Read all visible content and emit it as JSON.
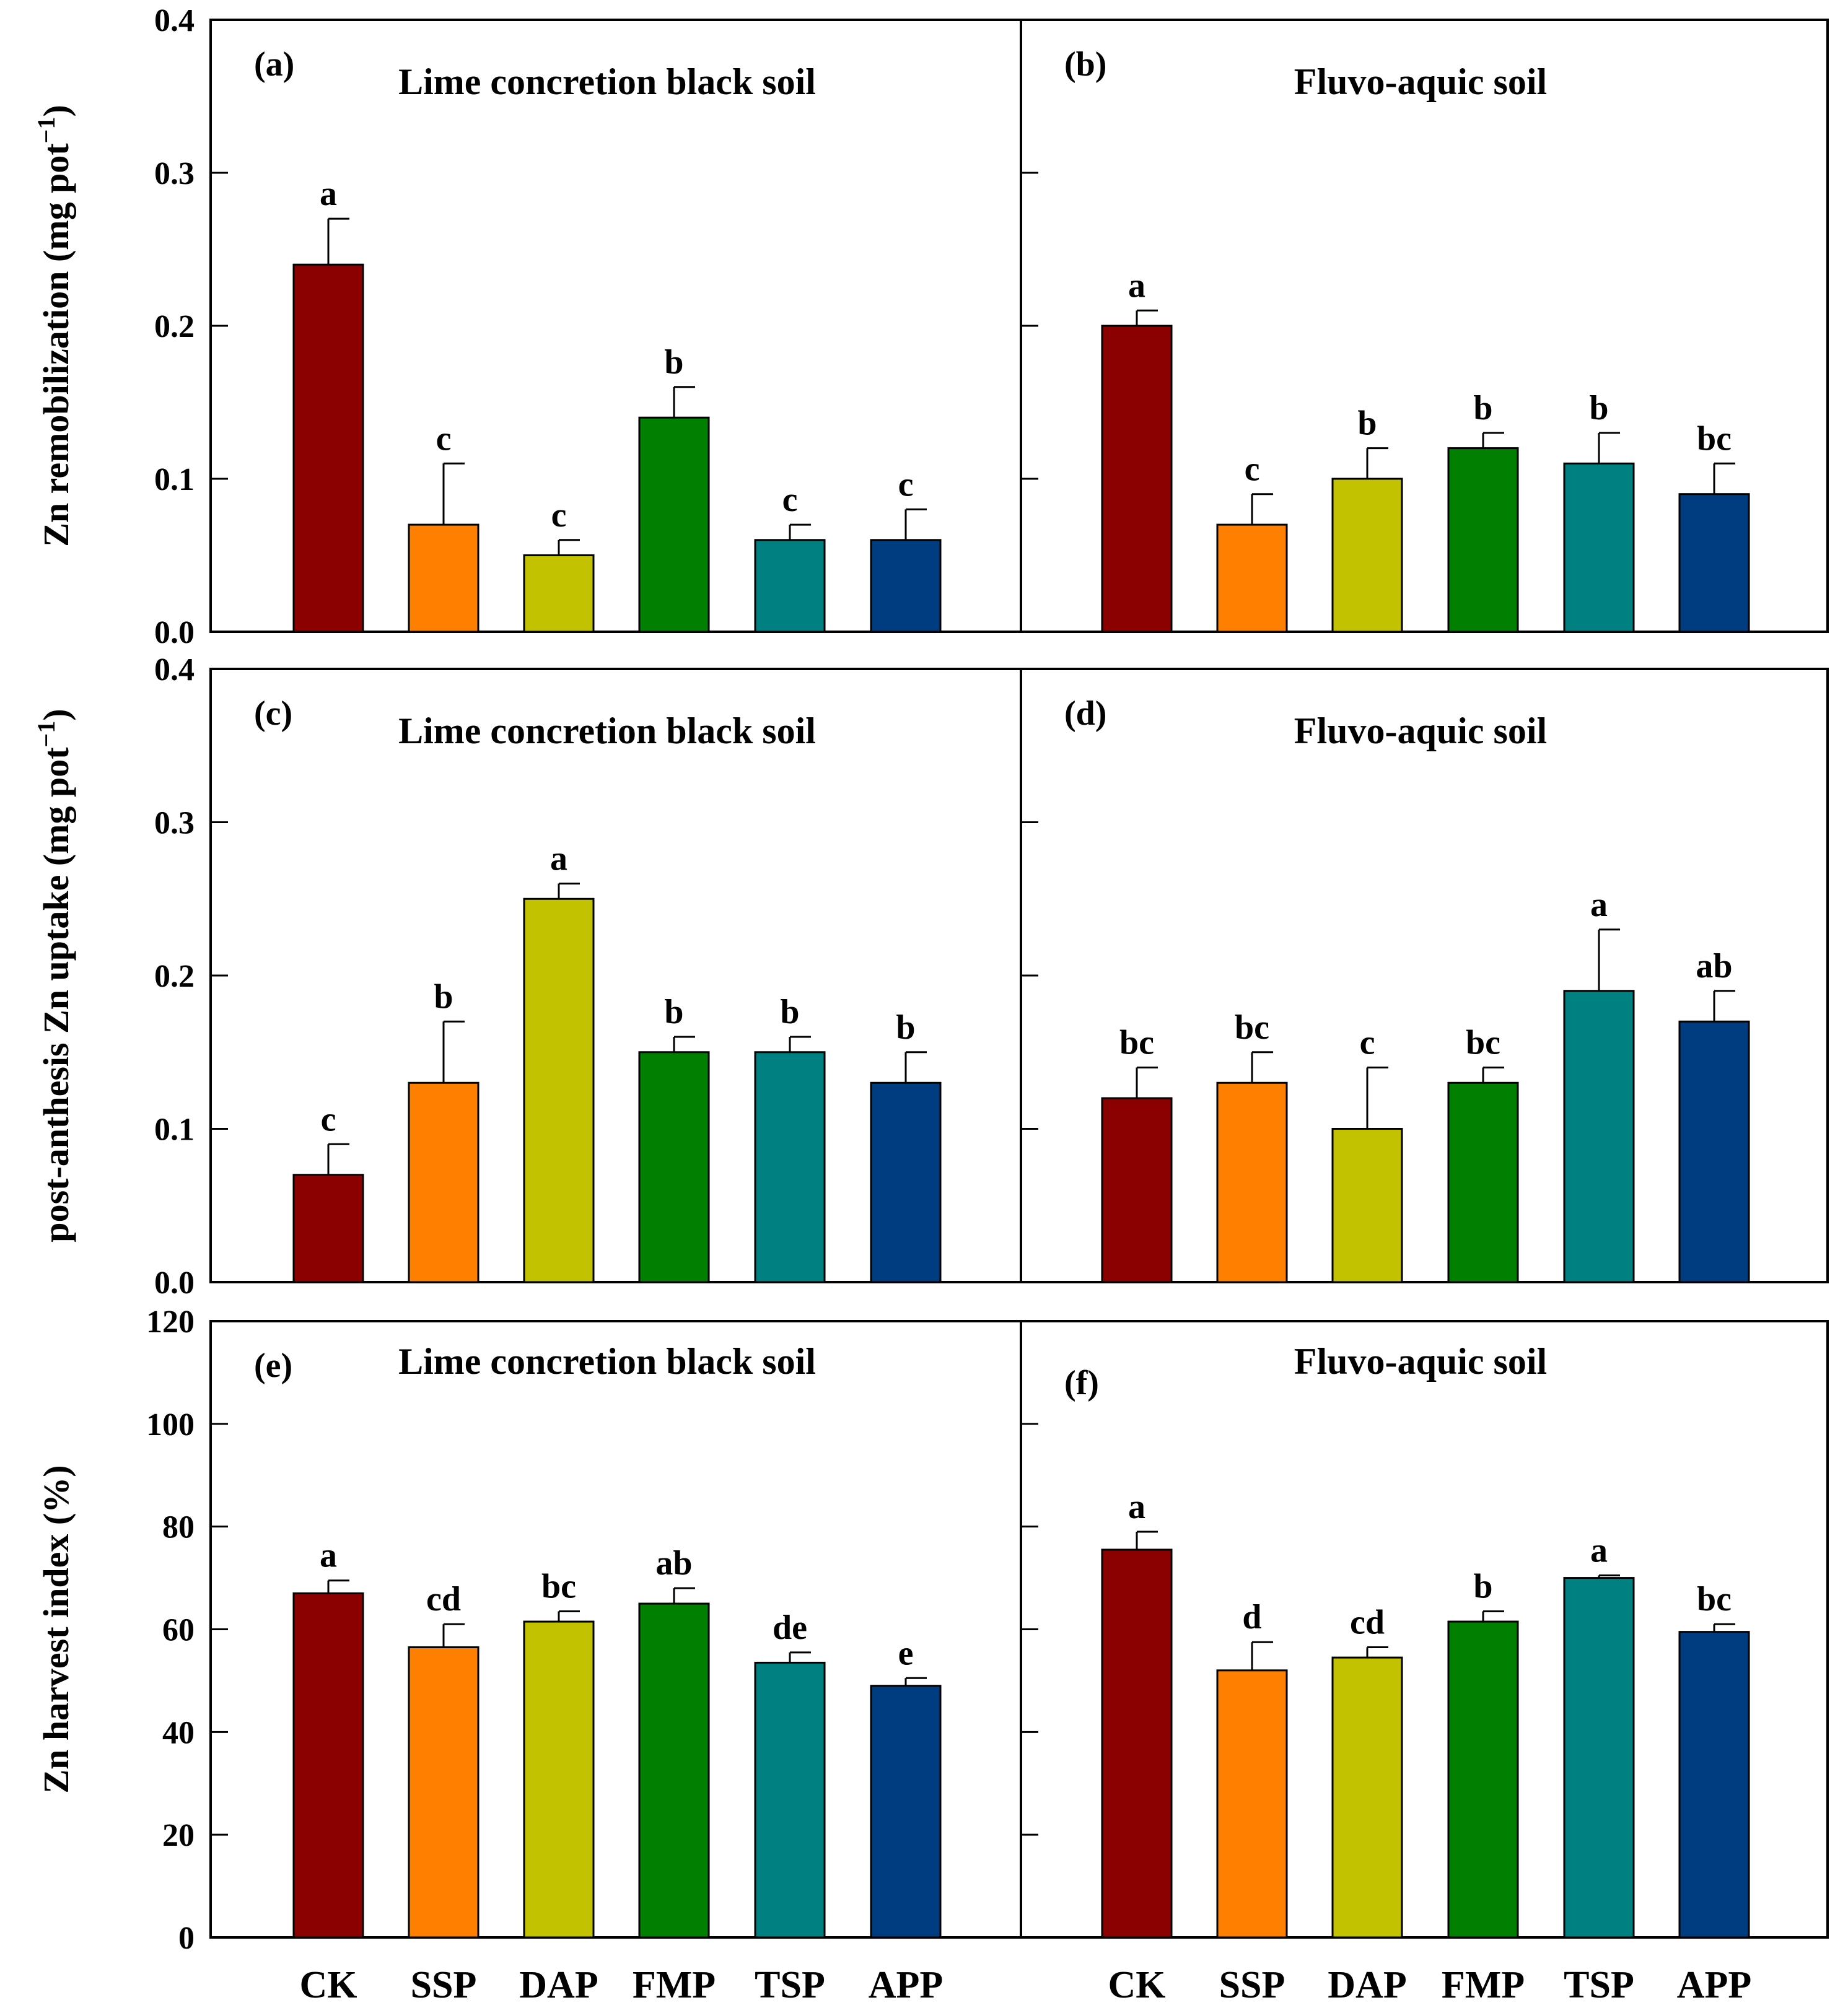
{
  "colors": {
    "CK": "#8b0000",
    "SSP": "#ff8000",
    "DAP": "#c2c200",
    "FMP": "#007f00",
    "TSP": "#008080",
    "APP": "#003d80"
  },
  "chart_data": [
    {
      "type": "bar",
      "panel": "(a)",
      "title": "Lime concretion black soil",
      "ylabel": "Zn remobilization (mg pot",
      "ylabel_sup": "−1",
      "ylabel_close": ")",
      "ylim": [
        0,
        0.4
      ],
      "yticks": [
        "0.0",
        "0.1",
        "0.2",
        "0.3",
        "0.4"
      ],
      "categories": [
        "CK",
        "SSP",
        "DAP",
        "FMP",
        "TSP",
        "APP"
      ],
      "values": [
        0.24,
        0.07,
        0.05,
        0.14,
        0.06,
        0.06
      ],
      "errors": [
        0.03,
        0.04,
        0.01,
        0.02,
        0.01,
        0.02
      ],
      "letters": [
        "a",
        "c",
        "c",
        "b",
        "c",
        "c"
      ]
    },
    {
      "type": "bar",
      "panel": "(b)",
      "title": "Fluvo-aquic soil",
      "ylim": [
        0,
        0.4
      ],
      "categories": [
        "CK",
        "SSP",
        "DAP",
        "FMP",
        "TSP",
        "APP"
      ],
      "values": [
        0.2,
        0.07,
        0.1,
        0.12,
        0.11,
        0.09
      ],
      "errors": [
        0.01,
        0.02,
        0.02,
        0.01,
        0.02,
        0.02
      ],
      "letters": [
        "a",
        "c",
        "b",
        "b",
        "b",
        "bc"
      ]
    },
    {
      "type": "bar",
      "panel": "(c)",
      "title": "Lime concretion black soil",
      "ylabel": "post-anthesis Zn uptake (mg pot",
      "ylabel_sup": "−1",
      "ylabel_close": ")",
      "ylim": [
        0,
        0.4
      ],
      "yticks": [
        "0.0",
        "0.1",
        "0.2",
        "0.3",
        "0.4"
      ],
      "categories": [
        "CK",
        "SSP",
        "DAP",
        "FMP",
        "TSP",
        "APP"
      ],
      "values": [
        0.07,
        0.13,
        0.25,
        0.15,
        0.15,
        0.13
      ],
      "errors": [
        0.02,
        0.04,
        0.01,
        0.01,
        0.01,
        0.02
      ],
      "letters": [
        "c",
        "b",
        "a",
        "b",
        "b",
        "b"
      ]
    },
    {
      "type": "bar",
      "panel": "(d)",
      "title": "Fluvo-aquic soil",
      "ylim": [
        0,
        0.4
      ],
      "categories": [
        "CK",
        "SSP",
        "DAP",
        "FMP",
        "TSP",
        "APP"
      ],
      "values": [
        0.12,
        0.13,
        0.1,
        0.13,
        0.19,
        0.17
      ],
      "errors": [
        0.02,
        0.02,
        0.04,
        0.01,
        0.04,
        0.02
      ],
      "letters": [
        "bc",
        "bc",
        "c",
        "bc",
        "a",
        "ab"
      ]
    },
    {
      "type": "bar",
      "panel": "(e)",
      "title": "Lime concretion black soil",
      "ylabel": "Zn harvest index (%)",
      "ylim": [
        0,
        120
      ],
      "yticks": [
        "0",
        "20",
        "40",
        "60",
        "80",
        "100",
        "120"
      ],
      "categories": [
        "CK",
        "SSP",
        "DAP",
        "FMP",
        "TSP",
        "APP"
      ],
      "values": [
        67,
        56.5,
        61.5,
        65,
        53.5,
        49
      ],
      "errors": [
        2.5,
        4.5,
        2,
        3,
        2,
        1.5
      ],
      "letters": [
        "a",
        "cd",
        "bc",
        "ab",
        "de",
        "e"
      ]
    },
    {
      "type": "bar",
      "panel": "(f)",
      "title": "Fluvo-aquic soil",
      "ylim": [
        0,
        120
      ],
      "categories": [
        "CK",
        "SSP",
        "DAP",
        "FMP",
        "TSP",
        "APP"
      ],
      "values": [
        75.5,
        52,
        54.5,
        61.5,
        70,
        59.5
      ],
      "errors": [
        3.5,
        5.5,
        2,
        2,
        0.5,
        1.5
      ],
      "letters": [
        "a",
        "d",
        "cd",
        "b",
        "a",
        "bc"
      ]
    }
  ]
}
